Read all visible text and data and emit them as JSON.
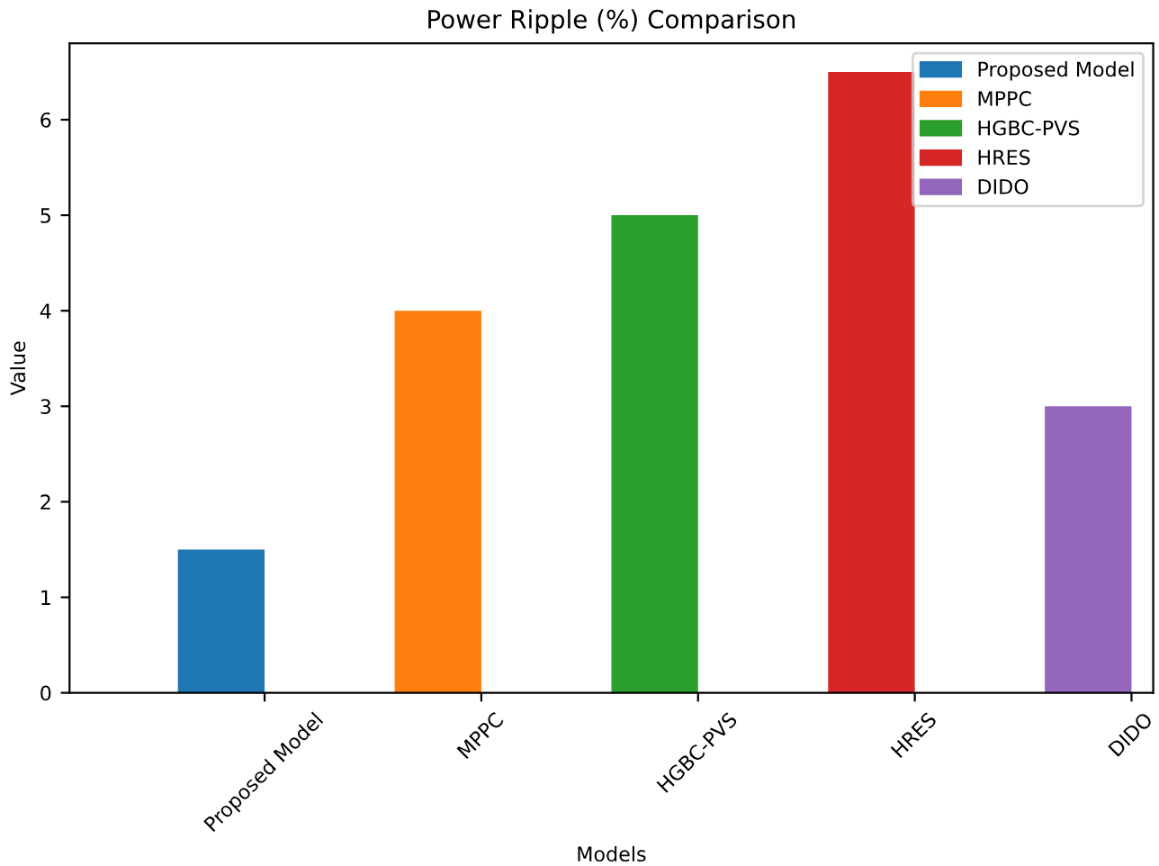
{
  "chart_data": {
    "type": "bar",
    "title": "Power Ripple (%) Comparison",
    "xlabel": "Models",
    "ylabel": "Value",
    "categories": [
      "Proposed Model",
      "MPPC",
      "HGBC-PVS",
      "HRES",
      "DIDO"
    ],
    "series": [
      {
        "name": "Proposed Model",
        "color": "#1f77b4",
        "values": [
          1.5,
          null,
          null,
          null,
          null
        ]
      },
      {
        "name": "MPPC",
        "color": "#ff7f0e",
        "values": [
          null,
          4.0,
          null,
          null,
          null
        ]
      },
      {
        "name": "HGBC-PVS",
        "color": "#2ca02c",
        "values": [
          null,
          null,
          5.0,
          null,
          null
        ]
      },
      {
        "name": "HRES",
        "color": "#d62728",
        "values": [
          null,
          null,
          null,
          6.5,
          null
        ]
      },
      {
        "name": "DIDO",
        "color": "#9467bd",
        "values": [
          null,
          null,
          null,
          null,
          3.0
        ]
      }
    ],
    "ylim": [
      0,
      6.8
    ],
    "yticks": [
      0,
      1,
      2,
      3,
      4,
      5,
      6
    ],
    "legend": "top right",
    "grid": false
  }
}
